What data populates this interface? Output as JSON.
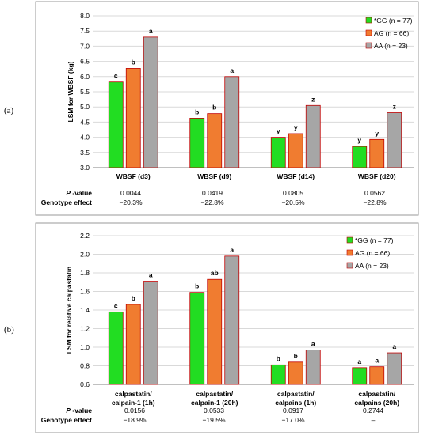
{
  "colors": {
    "GG": "#22dd22",
    "AG": "#f07c30",
    "AA": "#a6a6a6",
    "outline": "#c00000",
    "grid": "#d9d9d9",
    "axis": "#808080"
  },
  "panels": [
    {
      "panel_label": "(a)",
      "stats": {
        "pvalue_label_italic": "P",
        "pvalue_label_rest": " -value",
        "pvalues": [
          "0.0044",
          "0.0419",
          "0.0805",
          "0.0562"
        ],
        "genotype_label": "Genotype effect",
        "genotype_effects": [
          "−20.3%",
          "−22.8%",
          "−20.5%",
          "−22.8%"
        ]
      }
    },
    {
      "panel_label": "(b)",
      "stats": {
        "pvalue_label_italic": "P",
        "pvalue_label_rest": " -value",
        "pvalues": [
          "0.0156",
          "0.0533",
          "0.0917",
          "0.2744"
        ],
        "genotype_label": "Genotype effect",
        "genotype_effects": [
          "−18.9%",
          "−19.5%",
          "−17.0%",
          "–"
        ]
      }
    }
  ],
  "chart_data": [
    {
      "type": "bar",
      "ylabel": "LSM for WBSF (kg)",
      "ylim": [
        3.0,
        8.0
      ],
      "ytick_step": 0.5,
      "ytick_decimals": 1,
      "grid": true,
      "legend_position": "top-right",
      "categories": [
        "WBSF (d3)",
        "WBSF (d9)",
        "WBSF (d14)",
        "WBSF (d20)"
      ],
      "series": [
        {
          "name": "*GG (n = 77)",
          "key": "GG",
          "values": [
            5.82,
            4.63,
            4.0,
            3.7
          ],
          "labels": [
            "c",
            "b",
            "y",
            "y"
          ]
        },
        {
          "name": "AG (n = 66)",
          "key": "AG",
          "values": [
            6.27,
            4.78,
            4.12,
            3.93
          ],
          "labels": [
            "b",
            "b",
            "y",
            "y"
          ]
        },
        {
          "name": "AA (n = 23)",
          "key": "AA",
          "values": [
            7.3,
            6.0,
            5.05,
            4.81
          ],
          "labels": [
            "a",
            "a",
            "z",
            "z"
          ]
        }
      ]
    },
    {
      "type": "bar",
      "ylabel": "LSM for relative calpastatin",
      "ylim": [
        0.6,
        2.2
      ],
      "ytick_step": 0.2,
      "ytick_decimals": 1,
      "grid": true,
      "legend_position": "top-right",
      "categories": [
        [
          "calpastatin/",
          "calpain-1 (1h)"
        ],
        [
          "calpastatin/",
          "calpain-1 (20h)"
        ],
        [
          "calpastatin/",
          "calpains (1h)"
        ],
        [
          "calpastatin/",
          "calpains (20h)"
        ]
      ],
      "series": [
        {
          "name": "*GG (n = 77)",
          "key": "GG",
          "values": [
            1.38,
            1.59,
            0.81,
            0.78
          ],
          "labels": [
            "c",
            "b",
            "b",
            "a"
          ]
        },
        {
          "name": "AG (n = 66)",
          "key": "AG",
          "values": [
            1.46,
            1.73,
            0.84,
            0.79
          ],
          "labels": [
            "b",
            "ab",
            "b",
            "a"
          ]
        },
        {
          "name": "AA (n = 23)",
          "key": "AA",
          "values": [
            1.71,
            1.98,
            0.97,
            0.94
          ],
          "labels": [
            "a",
            "a",
            "a",
            "a"
          ]
        }
      ]
    }
  ]
}
